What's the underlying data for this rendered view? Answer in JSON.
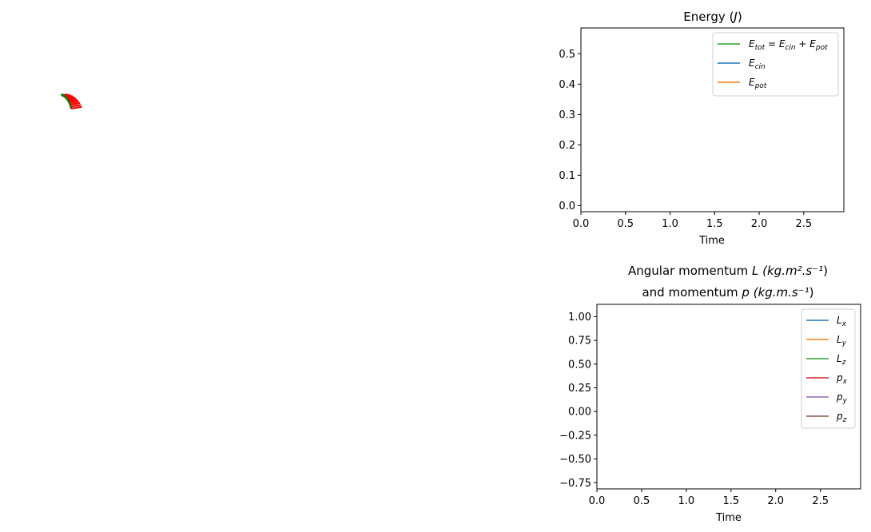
{
  "chart_data": [
    {
      "type": "line",
      "title_parts": [
        "Energy (",
        "J",
        ")"
      ],
      "xlabel": "Time",
      "ylabel": "",
      "xlim": [
        0,
        2.95
      ],
      "ylim": [
        -0.02,
        0.585
      ],
      "xticks": [
        "0.0",
        "0.5",
        "1.0",
        "1.5",
        "2.0",
        "2.5"
      ],
      "xtick_values": [
        0,
        0.5,
        1.0,
        1.5,
        2.0,
        2.5
      ],
      "yticks": [
        "0.0",
        "0.1",
        "0.2",
        "0.3",
        "0.4",
        "0.5"
      ],
      "ytick_values": [
        0,
        0.1,
        0.2,
        0.3,
        0.4,
        0.5
      ],
      "legend_position": "top-right",
      "series": [
        {
          "name": "E_tot = E_cin + E_pot",
          "color": "#2ca02c",
          "x": [],
          "y": []
        },
        {
          "name": "E_cin",
          "color": "#1f77b4",
          "x": [],
          "y": []
        },
        {
          "name": "E_pot",
          "color": "#ff7f0e",
          "x": [],
          "y": []
        }
      ]
    },
    {
      "type": "line",
      "title_line1_parts": [
        "Angular momentum ",
        "L",
        " (kg.m²",
        ".s⁻¹",
        ")"
      ],
      "title_line2_parts": [
        "and momentum ",
        "p",
        " (kg.m.s⁻¹",
        ")"
      ],
      "xlabel": "Time",
      "ylabel": "",
      "xlim": [
        0,
        2.95
      ],
      "ylim": [
        -0.815,
        1.13
      ],
      "xticks": [
        "0.0",
        "0.5",
        "1.0",
        "1.5",
        "2.0",
        "2.5"
      ],
      "xtick_values": [
        0,
        0.5,
        1.0,
        1.5,
        2.0,
        2.5
      ],
      "yticks": [
        "1.00",
        "0.75",
        "0.50",
        "0.25",
        "0.00",
        "−0.25",
        "−0.50",
        "−0.75"
      ],
      "ytick_values": [
        1.0,
        0.75,
        0.5,
        0.25,
        0.0,
        -0.25,
        -0.5,
        -0.75
      ],
      "legend_position": "top-right",
      "series": [
        {
          "name": "L_x",
          "color": "#1f77b4",
          "x": [],
          "y": []
        },
        {
          "name": "L_y",
          "color": "#ff7f0e",
          "x": [],
          "y": []
        },
        {
          "name": "L_z",
          "color": "#2ca02c",
          "x": [],
          "y": []
        },
        {
          "name": "p_x",
          "color": "#d62728",
          "x": [],
          "y": []
        },
        {
          "name": "p_y",
          "color": "#9467bd",
          "x": [],
          "y": []
        },
        {
          "name": "p_z",
          "color": "#8c564b",
          "x": [],
          "y": []
        }
      ]
    }
  ],
  "simulation": {
    "type": "stick-pendulum-trace",
    "frame_count": 11,
    "colors": {
      "stick": "#ff0000",
      "tip": "#008000"
    }
  }
}
